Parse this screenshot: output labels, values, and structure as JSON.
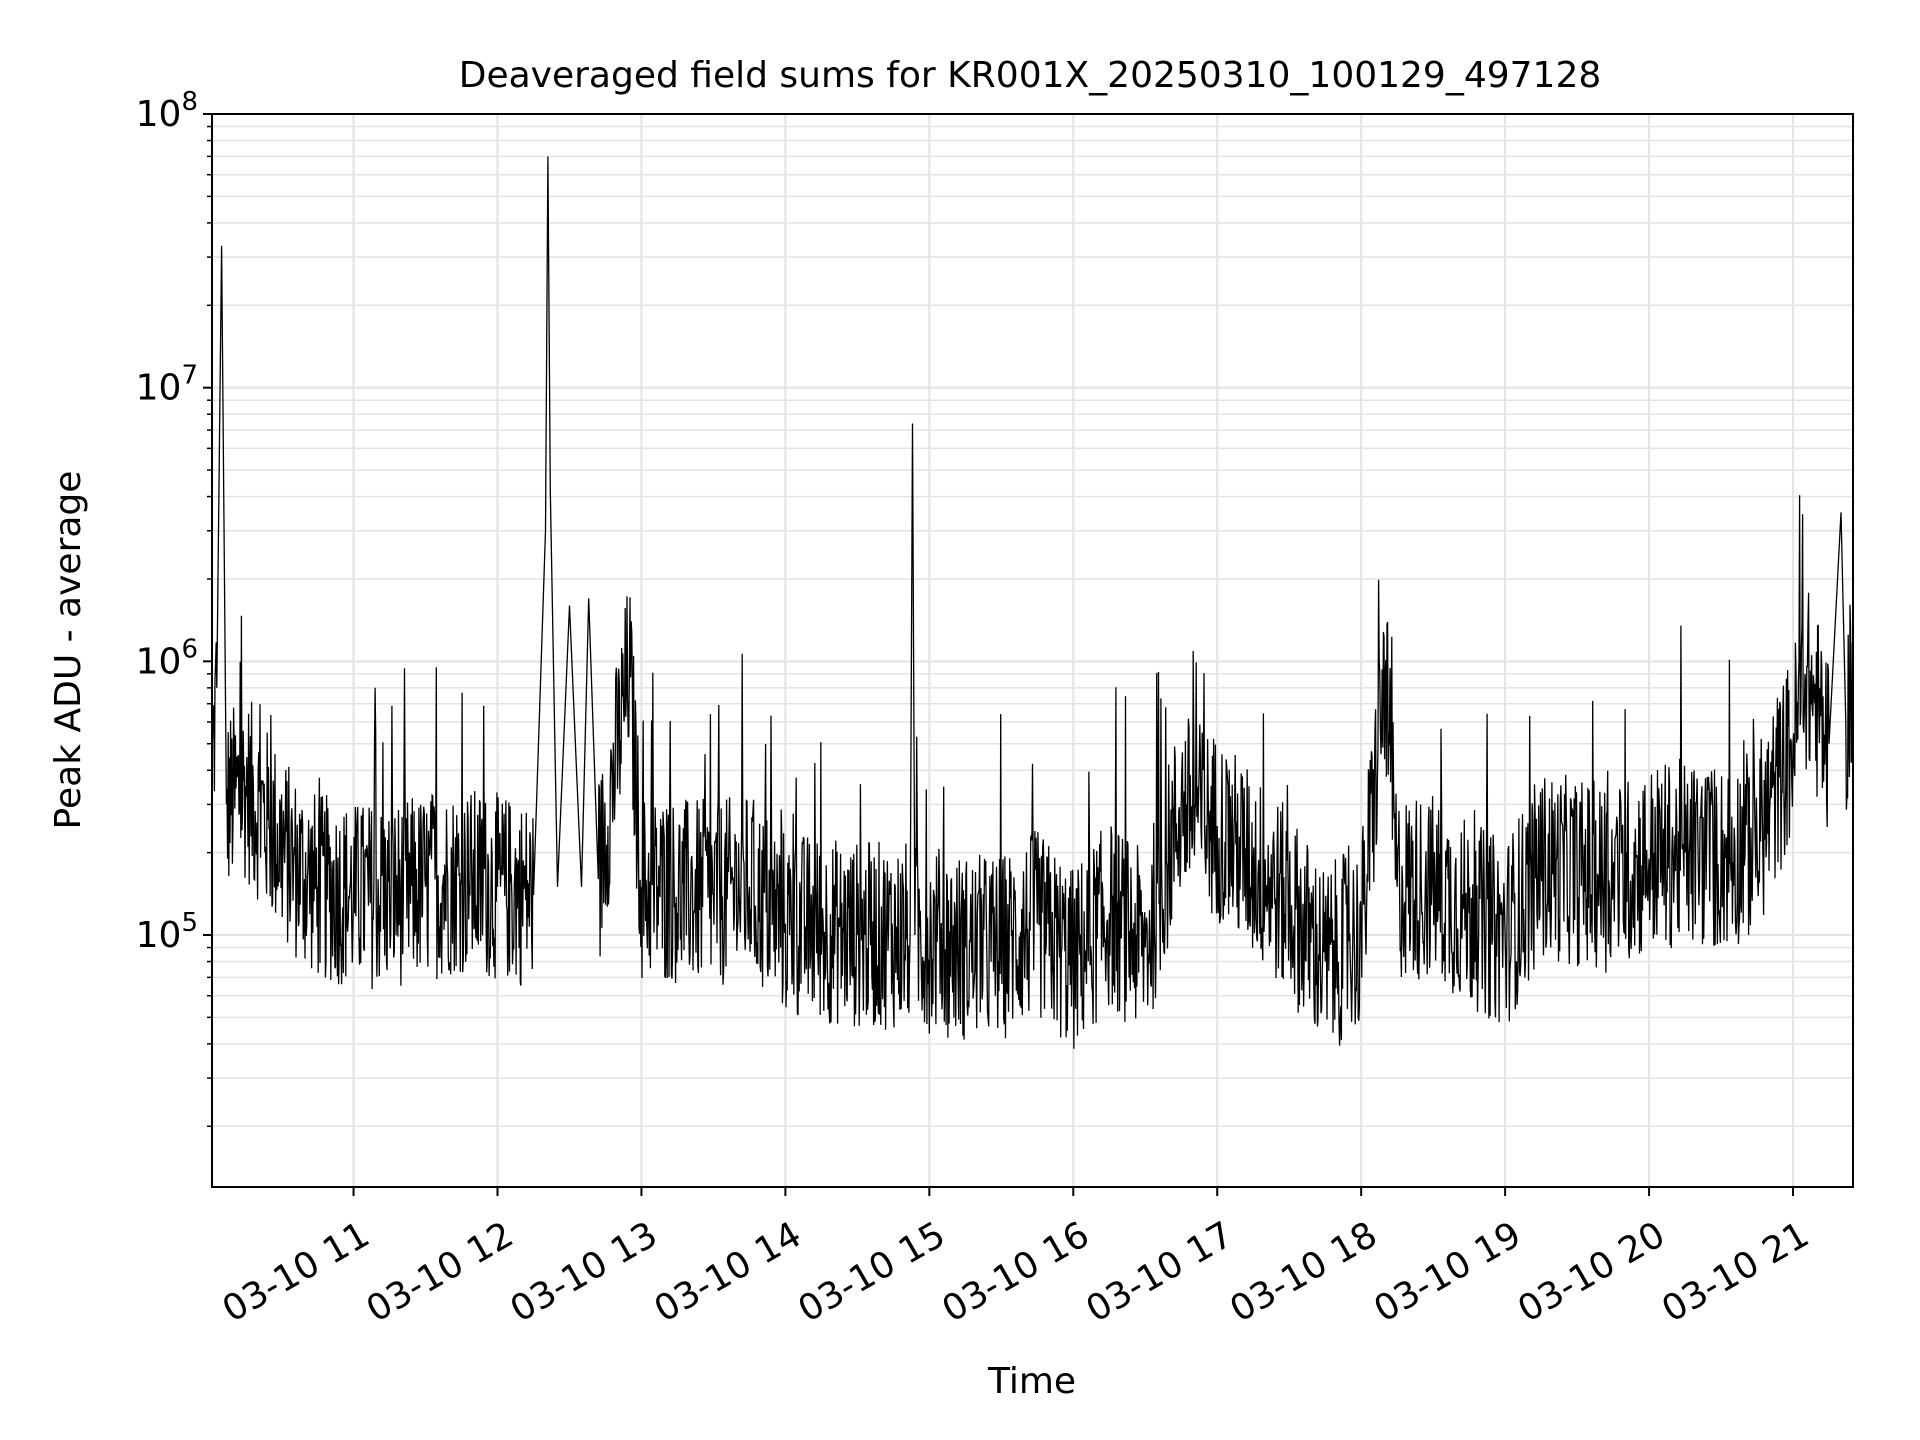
{
  "chart_data": {
    "type": "line",
    "title": "Deaveraged field sums for KR001X_20250310_100129_497128",
    "xlabel": "Time",
    "ylabel": "Peak ADU - average",
    "yscale": "log",
    "ylim": [
      12000,
      100000000
    ],
    "xlim": [
      "2025-03-10 10:01",
      "2025-03-10 21:25"
    ],
    "grid": "major and minor",
    "line_color": "#000000",
    "x_ticks": [
      {
        "t": "2025-03-10 11:00",
        "label": "03-10 11"
      },
      {
        "t": "2025-03-10 12:00",
        "label": "03-10 12"
      },
      {
        "t": "2025-03-10 13:00",
        "label": "03-10 13"
      },
      {
        "t": "2025-03-10 14:00",
        "label": "03-10 14"
      },
      {
        "t": "2025-03-10 15:00",
        "label": "03-10 15"
      },
      {
        "t": "2025-03-10 16:00",
        "label": "03-10 16"
      },
      {
        "t": "2025-03-10 17:00",
        "label": "03-10 17"
      },
      {
        "t": "2025-03-10 18:00",
        "label": "03-10 18"
      },
      {
        "t": "2025-03-10 19:00",
        "label": "03-10 19"
      },
      {
        "t": "2025-03-10 20:00",
        "label": "03-10 20"
      },
      {
        "t": "2025-03-10 21:00",
        "label": "03-10 21"
      }
    ],
    "y_ticks": [
      {
        "value": 100000,
        "base": "10",
        "exp": "5"
      },
      {
        "value": 1000000,
        "base": "10",
        "exp": "6"
      },
      {
        "value": 10000000,
        "base": "10",
        "exp": "7"
      },
      {
        "value": 100000000,
        "base": "10",
        "exp": "8"
      }
    ],
    "series": [
      {
        "points": [
          [
            "2025-03-10 10:01",
            400000
          ],
          [
            "2025-03-10 10:03",
            800000
          ],
          [
            "2025-03-10 10:05",
            33000000
          ],
          [
            "2025-03-10 10:07",
            300000
          ],
          [
            "2025-03-10 10:15",
            350000
          ],
          [
            "2025-03-10 10:25",
            250000
          ],
          [
            "2025-03-10 10:35",
            180000
          ],
          [
            "2025-03-10 10:45",
            150000
          ],
          [
            "2025-03-10 11:00",
            140000
          ],
          [
            "2025-03-10 11:15",
            140000
          ],
          [
            "2025-03-10 11:30",
            150000
          ],
          [
            "2025-03-10 11:45",
            160000
          ],
          [
            "2025-03-10 12:00",
            150000
          ],
          [
            "2025-03-10 12:15",
            140000
          ],
          [
            "2025-03-10 12:20",
            3000000
          ],
          [
            "2025-03-10 12:21",
            70000000
          ],
          [
            "2025-03-10 12:22",
            4200000
          ],
          [
            "2025-03-10 12:25",
            150000
          ],
          [
            "2025-03-10 12:30",
            1600000
          ],
          [
            "2025-03-10 12:35",
            150000
          ],
          [
            "2025-03-10 12:38",
            1700000
          ],
          [
            "2025-03-10 12:42",
            160000
          ],
          [
            "2025-03-10 12:55",
            950000
          ],
          [
            "2025-03-10 13:00",
            150000
          ],
          [
            "2025-03-10 13:30",
            140000
          ],
          [
            "2025-03-10 13:45",
            150000
          ],
          [
            "2025-03-10 14:00",
            110000
          ],
          [
            "2025-03-10 14:30",
            100000
          ],
          [
            "2025-03-10 14:52",
            100000
          ],
          [
            "2025-03-10 14:53",
            7400000
          ],
          [
            "2025-03-10 14:54",
            100000
          ],
          [
            "2025-03-10 15:15",
            90000
          ],
          [
            "2025-03-10 15:30",
            90000
          ],
          [
            "2025-03-10 15:45",
            110000
          ],
          [
            "2025-03-10 16:00",
            80000
          ],
          [
            "2025-03-10 16:15",
            120000
          ],
          [
            "2025-03-10 16:30",
            90000
          ],
          [
            "2025-03-10 16:45",
            300000
          ],
          [
            "2025-03-10 17:00",
            250000
          ],
          [
            "2025-03-10 17:15",
            180000
          ],
          [
            "2025-03-10 17:30",
            130000
          ],
          [
            "2025-03-10 17:45",
            80000
          ],
          [
            "2025-03-10 18:00",
            100000
          ],
          [
            "2025-03-10 18:10",
            900000
          ],
          [
            "2025-03-10 18:15",
            150000
          ],
          [
            "2025-03-10 18:30",
            150000
          ],
          [
            "2025-03-10 18:45",
            120000
          ],
          [
            "2025-03-10 19:00",
            100000
          ],
          [
            "2025-03-10 19:15",
            180000
          ],
          [
            "2025-03-10 19:30",
            170000
          ],
          [
            "2025-03-10 19:45",
            160000
          ],
          [
            "2025-03-10 20:00",
            190000
          ],
          [
            "2025-03-10 20:15",
            200000
          ],
          [
            "2025-03-10 20:30",
            190000
          ],
          [
            "2025-03-10 20:45",
            220000
          ],
          [
            "2025-03-10 21:00",
            500000
          ],
          [
            "2025-03-10 21:05",
            900000
          ],
          [
            "2025-03-10 21:15",
            500000
          ],
          [
            "2025-03-10 21:20",
            3500000
          ],
          [
            "2025-03-10 21:22",
            600000
          ],
          [
            "2025-03-10 21:25",
            800000
          ]
        ]
      }
    ]
  }
}
